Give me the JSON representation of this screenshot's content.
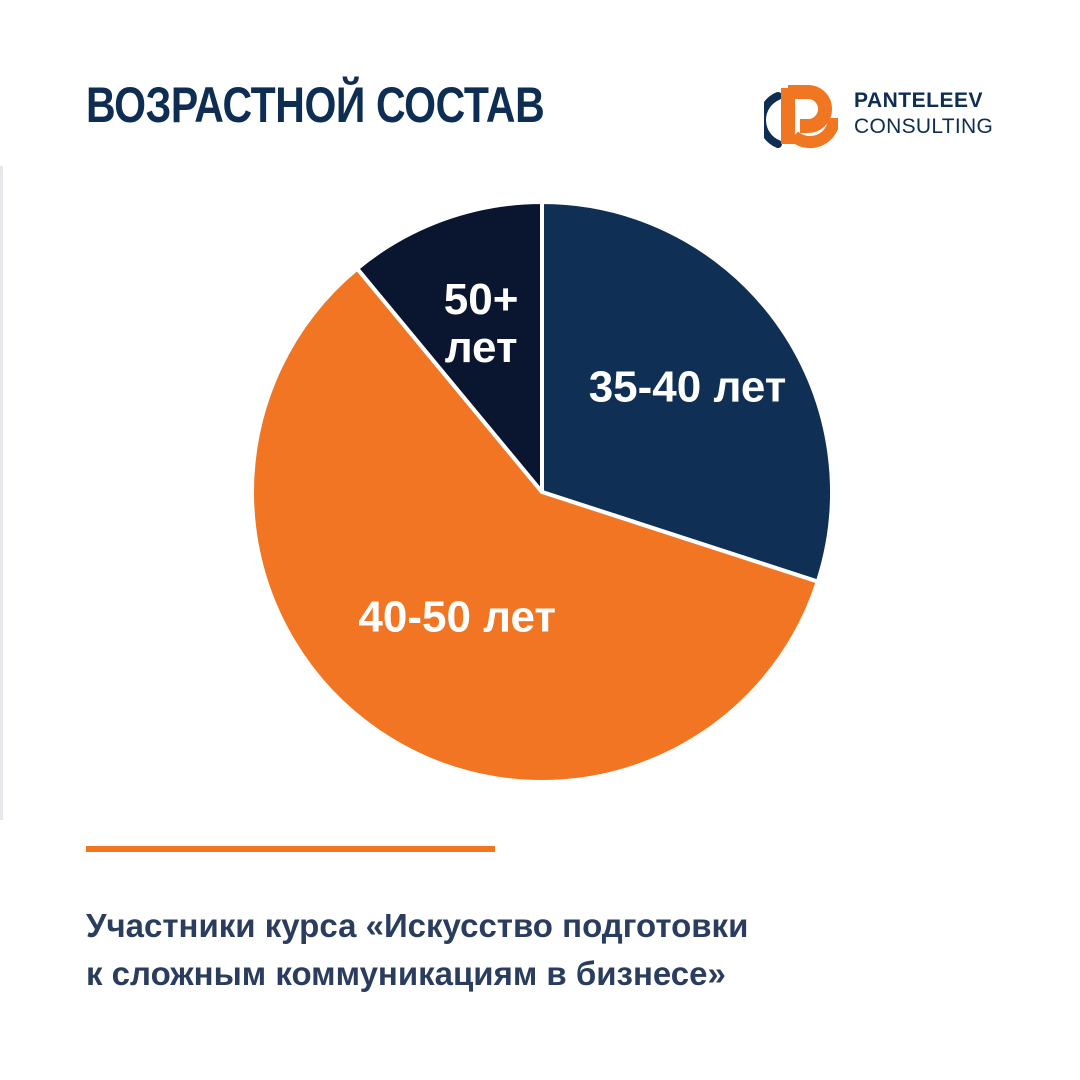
{
  "header": {
    "title": "ВОЗРАСТНОЙ СОСТАВ"
  },
  "logo": {
    "line1": "PANTELEEV",
    "line2": "CONSULTING",
    "mark_color_orange": "#f07622",
    "mark_color_navy": "#0d2d52"
  },
  "chart_data": {
    "type": "pie",
    "title": "ВОЗРАСТНОЙ СОСТАВ",
    "start_angle_deg": 0,
    "direction": "clockwise",
    "legend": "none",
    "slices": [
      {
        "label": "35-40 лет",
        "label_lines": [
          "35-40 лет"
        ],
        "value": 30,
        "color": "#0f2f55"
      },
      {
        "label": "40-50 лет",
        "label_lines": [
          "40-50 лет"
        ],
        "value": 59,
        "color": "#f17522"
      },
      {
        "label": "50+ лет",
        "label_lines": [
          "50+",
          "лет"
        ],
        "value": 11,
        "color": "#0a1630"
      }
    ]
  },
  "caption": {
    "line1": "Участники курса «Искусство подготовки",
    "line2": "к сложным коммуникациям в бизнесе»"
  }
}
